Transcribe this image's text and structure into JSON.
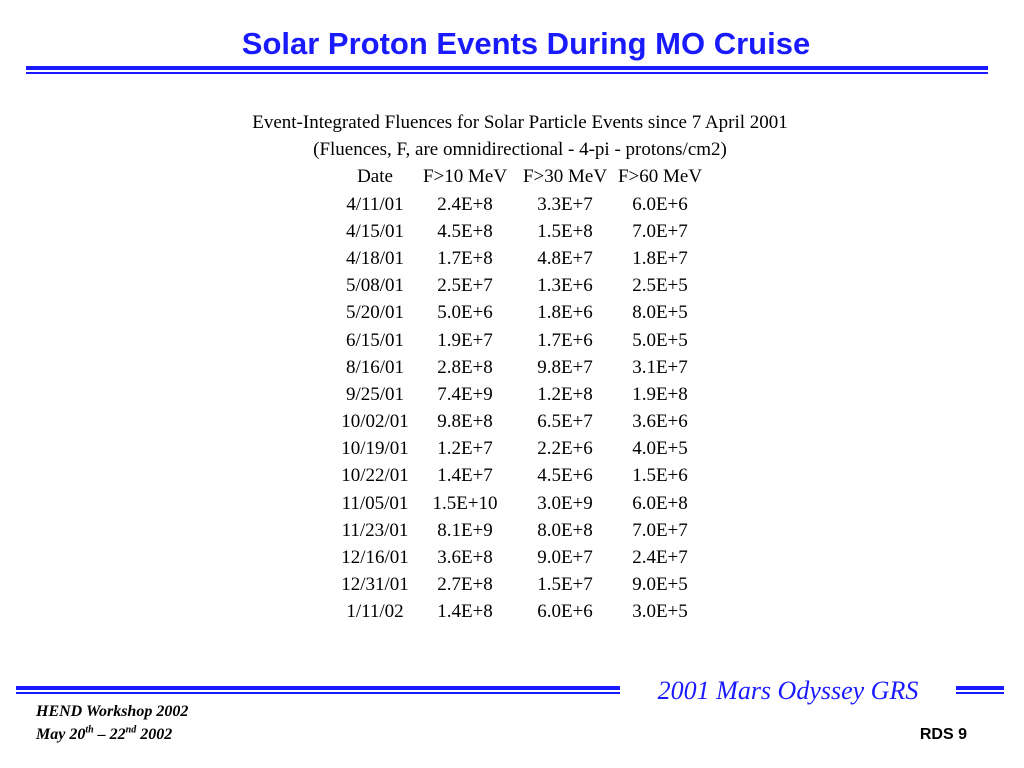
{
  "header": {
    "title": "Solar Proton Events During MO Cruise"
  },
  "body": {
    "intro_lines": [
      "Event-Integrated Fluences for Solar Particle Events since 7 April 2001",
      "(Fluences, F, are omnidirectional - 4-pi - protons/cm2)"
    ],
    "columns": [
      "Date",
      "F>10 MeV",
      "F>30 MeV",
      "F>60 MeV"
    ],
    "rows": [
      [
        "4/11/01",
        "2.4E+8",
        "3.3E+7",
        "6.0E+6"
      ],
      [
        "4/15/01",
        "4.5E+8",
        "1.5E+8",
        "7.0E+7"
      ],
      [
        "4/18/01",
        "1.7E+8",
        "4.8E+7",
        "1.8E+7"
      ],
      [
        "5/08/01",
        "2.5E+7",
        "1.3E+6",
        "2.5E+5"
      ],
      [
        "5/20/01",
        "5.0E+6",
        "1.8E+6",
        "8.0E+5"
      ],
      [
        "6/15/01",
        "1.9E+7",
        "1.7E+6",
        "5.0E+5"
      ],
      [
        "8/16/01",
        "2.8E+8",
        "9.8E+7",
        "3.1E+7"
      ],
      [
        "9/25/01",
        "7.4E+9",
        "1.2E+8",
        "1.9E+8"
      ],
      [
        "10/02/01",
        "9.8E+8",
        "6.5E+7",
        "3.6E+6"
      ],
      [
        "10/19/01",
        "1.2E+7",
        "2.2E+6",
        "4.0E+5"
      ],
      [
        "10/22/01",
        "1.4E+7",
        "4.5E+6",
        "1.5E+6"
      ],
      [
        "11/05/01",
        "1.5E+10",
        "3.0E+9",
        "6.0E+8"
      ],
      [
        "11/23/01",
        "8.1E+9",
        "8.0E+8",
        "7.0E+7"
      ],
      [
        "12/16/01",
        "3.6E+8",
        "9.0E+7",
        "2.4E+7"
      ],
      [
        "12/31/01",
        "2.7E+8",
        "1.5E+7",
        "9.0E+5"
      ],
      [
        "1/11/02",
        "1.4E+8",
        "6.0E+6",
        "3.0E+5"
      ]
    ]
  },
  "footer": {
    "brand": "2001 Mars Odyssey GRS",
    "workshop": "HEND Workshop 2002",
    "date_prefix": "May 20",
    "date_sup1": "th",
    "date_mid": " – 22",
    "date_sup2": "nd",
    "date_suffix": " 2002",
    "page_label": "RDS 9"
  },
  "colors": {
    "accent": "#1a1aff",
    "text": "#000000",
    "background": "#ffffff"
  }
}
